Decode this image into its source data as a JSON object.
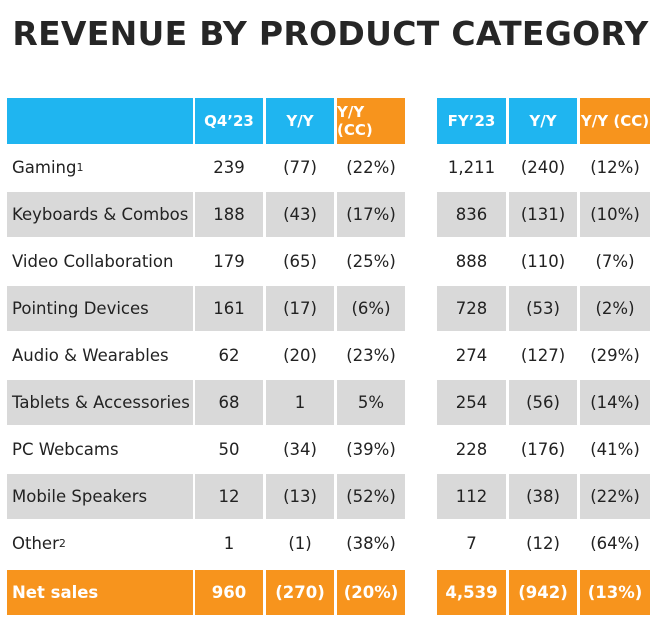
{
  "header": {
    "title": "REVENUE BY PRODUCT CATEGORY"
  },
  "table": {
    "columns": [
      "Q4’23",
      "Y/Y",
      "Y/Y (CC)",
      "FY’23",
      "Y/Y",
      "Y/Y (CC)"
    ],
    "rows": [
      {
        "label": "Gaming",
        "sup": "1",
        "cells": [
          "239",
          "(77)",
          "(22%)",
          "1,211",
          "(240)",
          "(12%)"
        ]
      },
      {
        "label": "Keyboards & Combos",
        "cells": [
          "188",
          "(43)",
          "(17%)",
          "836",
          "(131)",
          "(10%)"
        ]
      },
      {
        "label": "Video Collaboration",
        "cells": [
          "179",
          "(65)",
          "(25%)",
          "888",
          "(110)",
          "(7%)"
        ]
      },
      {
        "label": "Pointing Devices",
        "cells": [
          "161",
          "(17)",
          "(6%)",
          "728",
          "(53)",
          "(2%)"
        ]
      },
      {
        "label": "Audio & Wearables",
        "cells": [
          "62",
          "(20)",
          "(23%)",
          "274",
          "(127)",
          "(29%)"
        ]
      },
      {
        "label": "Tablets & Accessories",
        "cells": [
          "68",
          "1",
          "5%",
          "254",
          "(56)",
          "(14%)"
        ]
      },
      {
        "label": "PC Webcams",
        "cells": [
          "50",
          "(34)",
          "(39%)",
          "228",
          "(176)",
          "(41%)"
        ]
      },
      {
        "label": "Mobile Speakers",
        "cells": [
          "12",
          "(13)",
          "(52%)",
          "112",
          "(38)",
          "(22%)"
        ]
      },
      {
        "label": "Other",
        "sup": "2",
        "cells": [
          "1",
          "(1)",
          "(38%)",
          "7",
          "(12)",
          "(64%)"
        ]
      }
    ],
    "total": {
      "label": "Net sales",
      "cells": [
        "960",
        "(270)",
        "(20%)",
        "4,539",
        "(942)",
        "(13%)"
      ]
    }
  }
}
